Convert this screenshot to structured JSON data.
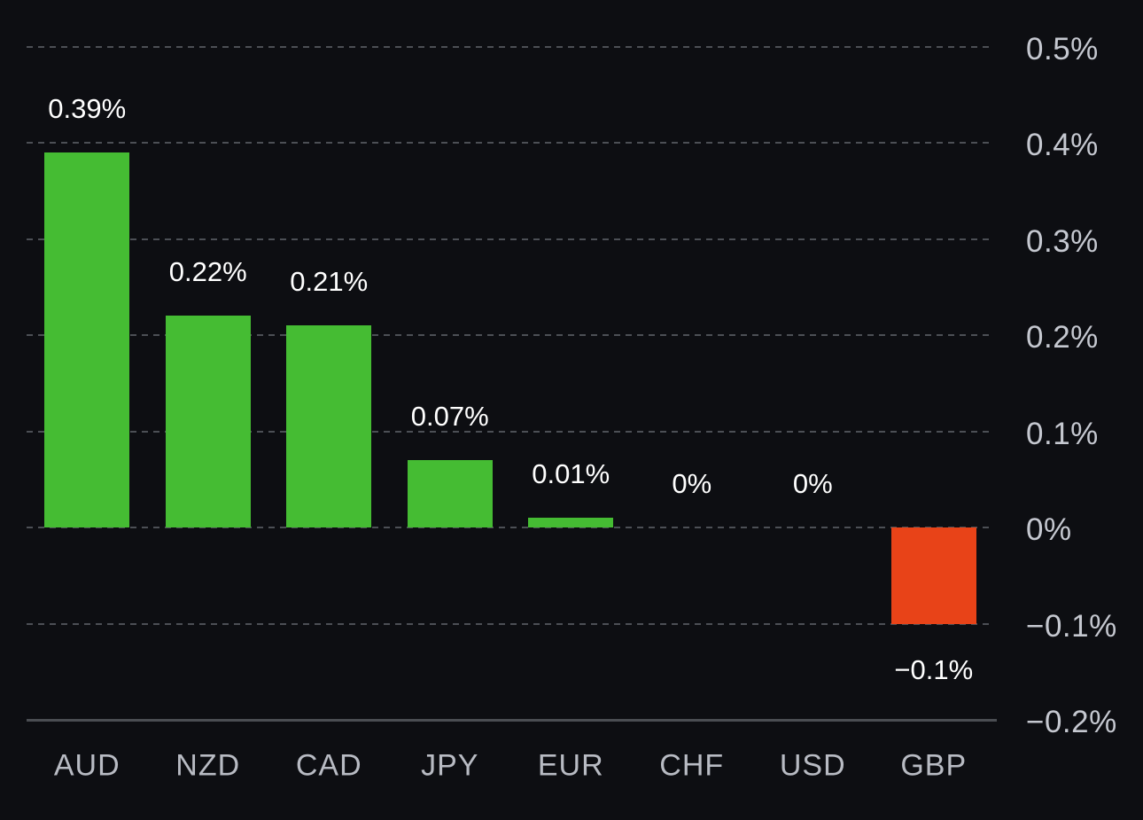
{
  "chart_data": {
    "type": "bar",
    "title": "",
    "categories": [
      "AUD",
      "NZD",
      "CAD",
      "JPY",
      "EUR",
      "CHF",
      "USD",
      "GBP"
    ],
    "values": [
      0.39,
      0.22,
      0.21,
      0.07,
      0.01,
      0,
      0,
      -0.1
    ],
    "bar_labels": [
      "0.39%",
      "0.22%",
      "0.21%",
      "0.07%",
      "0.01%",
      "0%",
      "0%",
      "−0.1%"
    ],
    "y_ticks": [
      {
        "value": 0.5,
        "label": "0.5%"
      },
      {
        "value": 0.4,
        "label": "0.4%"
      },
      {
        "value": 0.3,
        "label": "0.3%"
      },
      {
        "value": 0.2,
        "label": "0.2%"
      },
      {
        "value": 0.1,
        "label": "0.1%"
      },
      {
        "value": 0,
        "label": "0%"
      },
      {
        "value": -0.1,
        "label": "−0.1%"
      },
      {
        "value": -0.2,
        "label": "−0.2%"
      }
    ],
    "ylim": [
      -0.2,
      0.5
    ],
    "xlabel": "",
    "ylabel": "",
    "legend": "none",
    "grid": "horizontal-dashed",
    "colors": {
      "background": "#0d0e12",
      "positive_bar": "#45bc33",
      "negative_bar": "#e84318",
      "gridline": "#4c4f55",
      "axis_line": "#4a4d52",
      "y_axis_text": "#c5c8d0",
      "category_text": "#b8bbc3",
      "value_label_text": "#ffffff"
    }
  }
}
